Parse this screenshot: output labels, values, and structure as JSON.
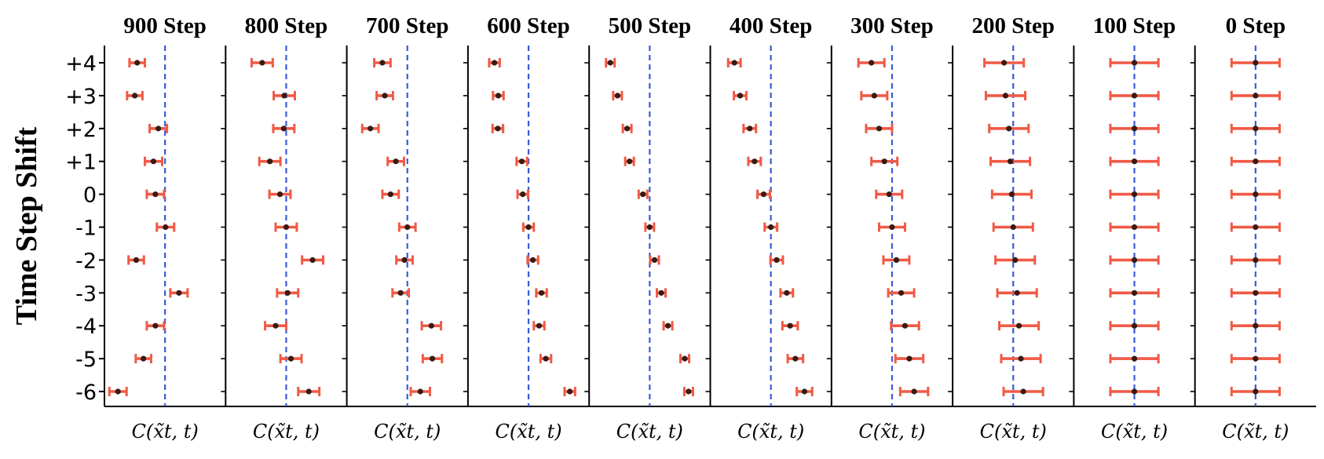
{
  "chart_data": {
    "type": "errorbar",
    "ylabel": "Time Step Shift",
    "xlabel": "C(x̃t, t)",
    "yticks": [
      "+4",
      "+3",
      "+2",
      "+1",
      "0",
      "-1",
      "-2",
      "-3",
      "-4",
      "-5",
      "-6"
    ],
    "reference_line": {
      "style": "dashed",
      "value": 0
    },
    "xlim": [
      -1,
      1
    ],
    "colors": {
      "errorbar": "#f05a45",
      "marker": "#3a1a12",
      "reference": "#3a5bd9",
      "axis": "#000000"
    },
    "panels": [
      {
        "title": "900 Step",
        "centers": [
          -0.58,
          -0.63,
          -0.14,
          -0.24,
          -0.2,
          0.01,
          -0.6,
          0.29,
          -0.2,
          -0.45,
          -0.98
        ],
        "halfwidths": [
          0.16,
          0.16,
          0.18,
          0.18,
          0.18,
          0.18,
          0.16,
          0.18,
          0.18,
          0.16,
          0.18
        ]
      },
      {
        "title": "800 Step",
        "centers": [
          -0.5,
          -0.04,
          -0.05,
          -0.34,
          -0.13,
          0.0,
          0.55,
          0.03,
          -0.22,
          0.1,
          0.47
        ],
        "halfwidths": [
          0.22,
          0.22,
          0.22,
          0.22,
          0.22,
          0.22,
          0.22,
          0.22,
          0.22,
          0.22,
          0.22
        ]
      },
      {
        "title": "700 Step",
        "centers": [
          -0.52,
          -0.47,
          -0.77,
          -0.24,
          -0.35,
          0.0,
          -0.06,
          -0.14,
          0.5,
          0.52,
          0.27
        ],
        "halfwidths": [
          0.17,
          0.17,
          0.17,
          0.17,
          0.17,
          0.17,
          0.17,
          0.17,
          0.2,
          0.2,
          0.2
        ]
      },
      {
        "title": "600 Step",
        "centers": [
          -0.71,
          -0.63,
          -0.64,
          -0.14,
          -0.12,
          0.0,
          0.09,
          0.27,
          0.22,
          0.36,
          0.86
        ],
        "halfwidths": [
          0.11,
          0.11,
          0.11,
          0.11,
          0.11,
          0.11,
          0.11,
          0.11,
          0.11,
          0.11,
          0.11
        ]
      },
      {
        "title": "500 Step",
        "centers": [
          -0.82,
          -0.67,
          -0.47,
          -0.42,
          -0.14,
          0.0,
          0.1,
          0.24,
          0.38,
          0.73,
          0.81
        ],
        "halfwidths": [
          0.09,
          0.09,
          0.09,
          0.09,
          0.09,
          0.09,
          0.09,
          0.09,
          0.09,
          0.09,
          0.09
        ]
      },
      {
        "title": "400 Step",
        "centers": [
          -0.76,
          -0.64,
          -0.44,
          -0.34,
          -0.15,
          0.0,
          0.12,
          0.33,
          0.4,
          0.51,
          0.7
        ],
        "halfwidths": [
          0.13,
          0.13,
          0.13,
          0.13,
          0.13,
          0.13,
          0.13,
          0.13,
          0.16,
          0.16,
          0.16
        ]
      },
      {
        "title": "300 Step",
        "centers": [
          -0.43,
          -0.37,
          -0.27,
          -0.16,
          -0.06,
          0.0,
          0.09,
          0.19,
          0.27,
          0.36,
          0.46
        ],
        "halfwidths": [
          0.27,
          0.27,
          0.27,
          0.27,
          0.27,
          0.27,
          0.27,
          0.27,
          0.29,
          0.29,
          0.29
        ]
      },
      {
        "title": "200 Step",
        "centers": [
          -0.19,
          -0.16,
          -0.09,
          -0.06,
          -0.03,
          0.0,
          0.04,
          0.08,
          0.12,
          0.16,
          0.21
        ],
        "halfwidths": [
          0.41,
          0.41,
          0.41,
          0.41,
          0.41,
          0.41,
          0.41,
          0.41,
          0.41,
          0.41,
          0.41
        ]
      },
      {
        "title": "100 Step",
        "centers": [
          0.0,
          0.0,
          0.0,
          0.0,
          0.0,
          0.0,
          0.0,
          0.0,
          0.0,
          0.0,
          0.0
        ],
        "halfwidths": [
          0.5,
          0.5,
          0.5,
          0.5,
          0.5,
          0.5,
          0.5,
          0.5,
          0.5,
          0.5,
          0.5
        ]
      },
      {
        "title": "0 Step",
        "centers": [
          0.0,
          0.0,
          0.0,
          0.0,
          0.0,
          0.0,
          0.0,
          0.0,
          0.0,
          0.0,
          0.0
        ],
        "halfwidths": [
          0.5,
          0.5,
          0.5,
          0.5,
          0.5,
          0.5,
          0.5,
          0.5,
          0.5,
          0.5,
          0.5
        ]
      }
    ]
  }
}
